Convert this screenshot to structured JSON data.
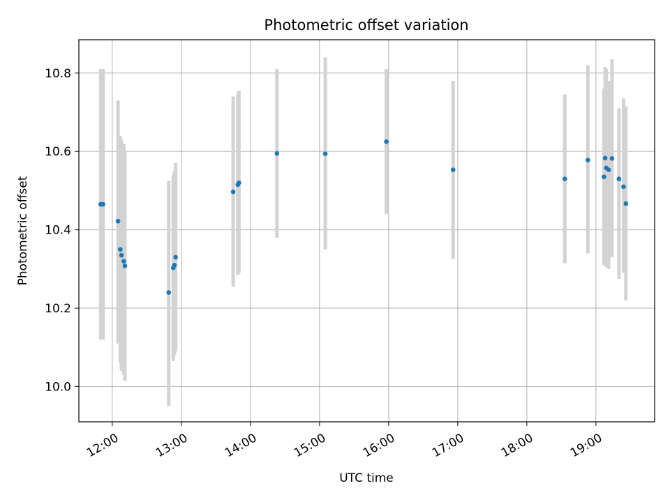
{
  "chart_data": {
    "type": "scatter",
    "title": "Photometric offset variation",
    "xlabel": "UTC time",
    "ylabel": "Photometric offset",
    "xlim": [
      "11:31",
      "19:51"
    ],
    "ylim": [
      9.91,
      10.885
    ],
    "x_ticks": [
      "12:00",
      "13:00",
      "14:00",
      "15:00",
      "16:00",
      "17:00",
      "18:00",
      "19:00"
    ],
    "y_ticks": [
      10.0,
      10.2,
      10.4,
      10.6,
      10.8
    ],
    "grid": true,
    "marker_color": "#1f77b4",
    "errorbar_color": "#d3d3d3",
    "points": [
      {
        "t": "11:50",
        "y": 10.465,
        "lo": 10.12,
        "hi": 10.81
      },
      {
        "t": "11:52",
        "y": 10.465,
        "lo": 10.12,
        "hi": 10.81
      },
      {
        "t": "12:05",
        "y": 10.422,
        "lo": 10.11,
        "hi": 10.73
      },
      {
        "t": "12:07",
        "y": 10.35,
        "lo": 10.06,
        "hi": 10.64
      },
      {
        "t": "12:08",
        "y": 10.335,
        "lo": 10.04,
        "hi": 10.63
      },
      {
        "t": "12:10",
        "y": 10.32,
        "lo": 10.03,
        "hi": 10.62
      },
      {
        "t": "12:11",
        "y": 10.308,
        "lo": 10.015,
        "hi": 10.6
      },
      {
        "t": "12:49",
        "y": 10.24,
        "lo": 9.95,
        "hi": 10.525
      },
      {
        "t": "12:53",
        "y": 10.303,
        "lo": 10.065,
        "hi": 10.54
      },
      {
        "t": "12:54",
        "y": 10.31,
        "lo": 10.08,
        "hi": 10.55
      },
      {
        "t": "12:55",
        "y": 10.33,
        "lo": 10.09,
        "hi": 10.57
      },
      {
        "t": "13:45",
        "y": 10.497,
        "lo": 10.255,
        "hi": 10.74
      },
      {
        "t": "13:49",
        "y": 10.515,
        "lo": 10.285,
        "hi": 10.745
      },
      {
        "t": "13:50",
        "y": 10.52,
        "lo": 10.29,
        "hi": 10.755
      },
      {
        "t": "14:23",
        "y": 10.595,
        "lo": 10.38,
        "hi": 10.81
      },
      {
        "t": "15:05",
        "y": 10.594,
        "lo": 10.35,
        "hi": 10.84
      },
      {
        "t": "15:58",
        "y": 10.625,
        "lo": 10.44,
        "hi": 10.81
      },
      {
        "t": "16:56",
        "y": 10.553,
        "lo": 10.325,
        "hi": 10.78
      },
      {
        "t": "18:33",
        "y": 10.53,
        "lo": 10.315,
        "hi": 10.745
      },
      {
        "t": "18:53",
        "y": 10.578,
        "lo": 10.34,
        "hi": 10.82
      },
      {
        "t": "19:07",
        "y": 10.535,
        "lo": 10.31,
        "hi": 10.76
      },
      {
        "t": "19:08",
        "y": 10.583,
        "lo": 10.31,
        "hi": 10.815
      },
      {
        "t": "19:09",
        "y": 10.558,
        "lo": 10.305,
        "hi": 10.81
      },
      {
        "t": "19:11",
        "y": 10.553,
        "lo": 10.3,
        "hi": 10.78
      },
      {
        "t": "19:14",
        "y": 10.582,
        "lo": 10.33,
        "hi": 10.835
      },
      {
        "t": "19:20",
        "y": 10.53,
        "lo": 10.275,
        "hi": 10.71
      },
      {
        "t": "19:24",
        "y": 10.51,
        "lo": 10.29,
        "hi": 10.735
      },
      {
        "t": "19:26",
        "y": 10.467,
        "lo": 10.22,
        "hi": 10.715
      }
    ]
  }
}
